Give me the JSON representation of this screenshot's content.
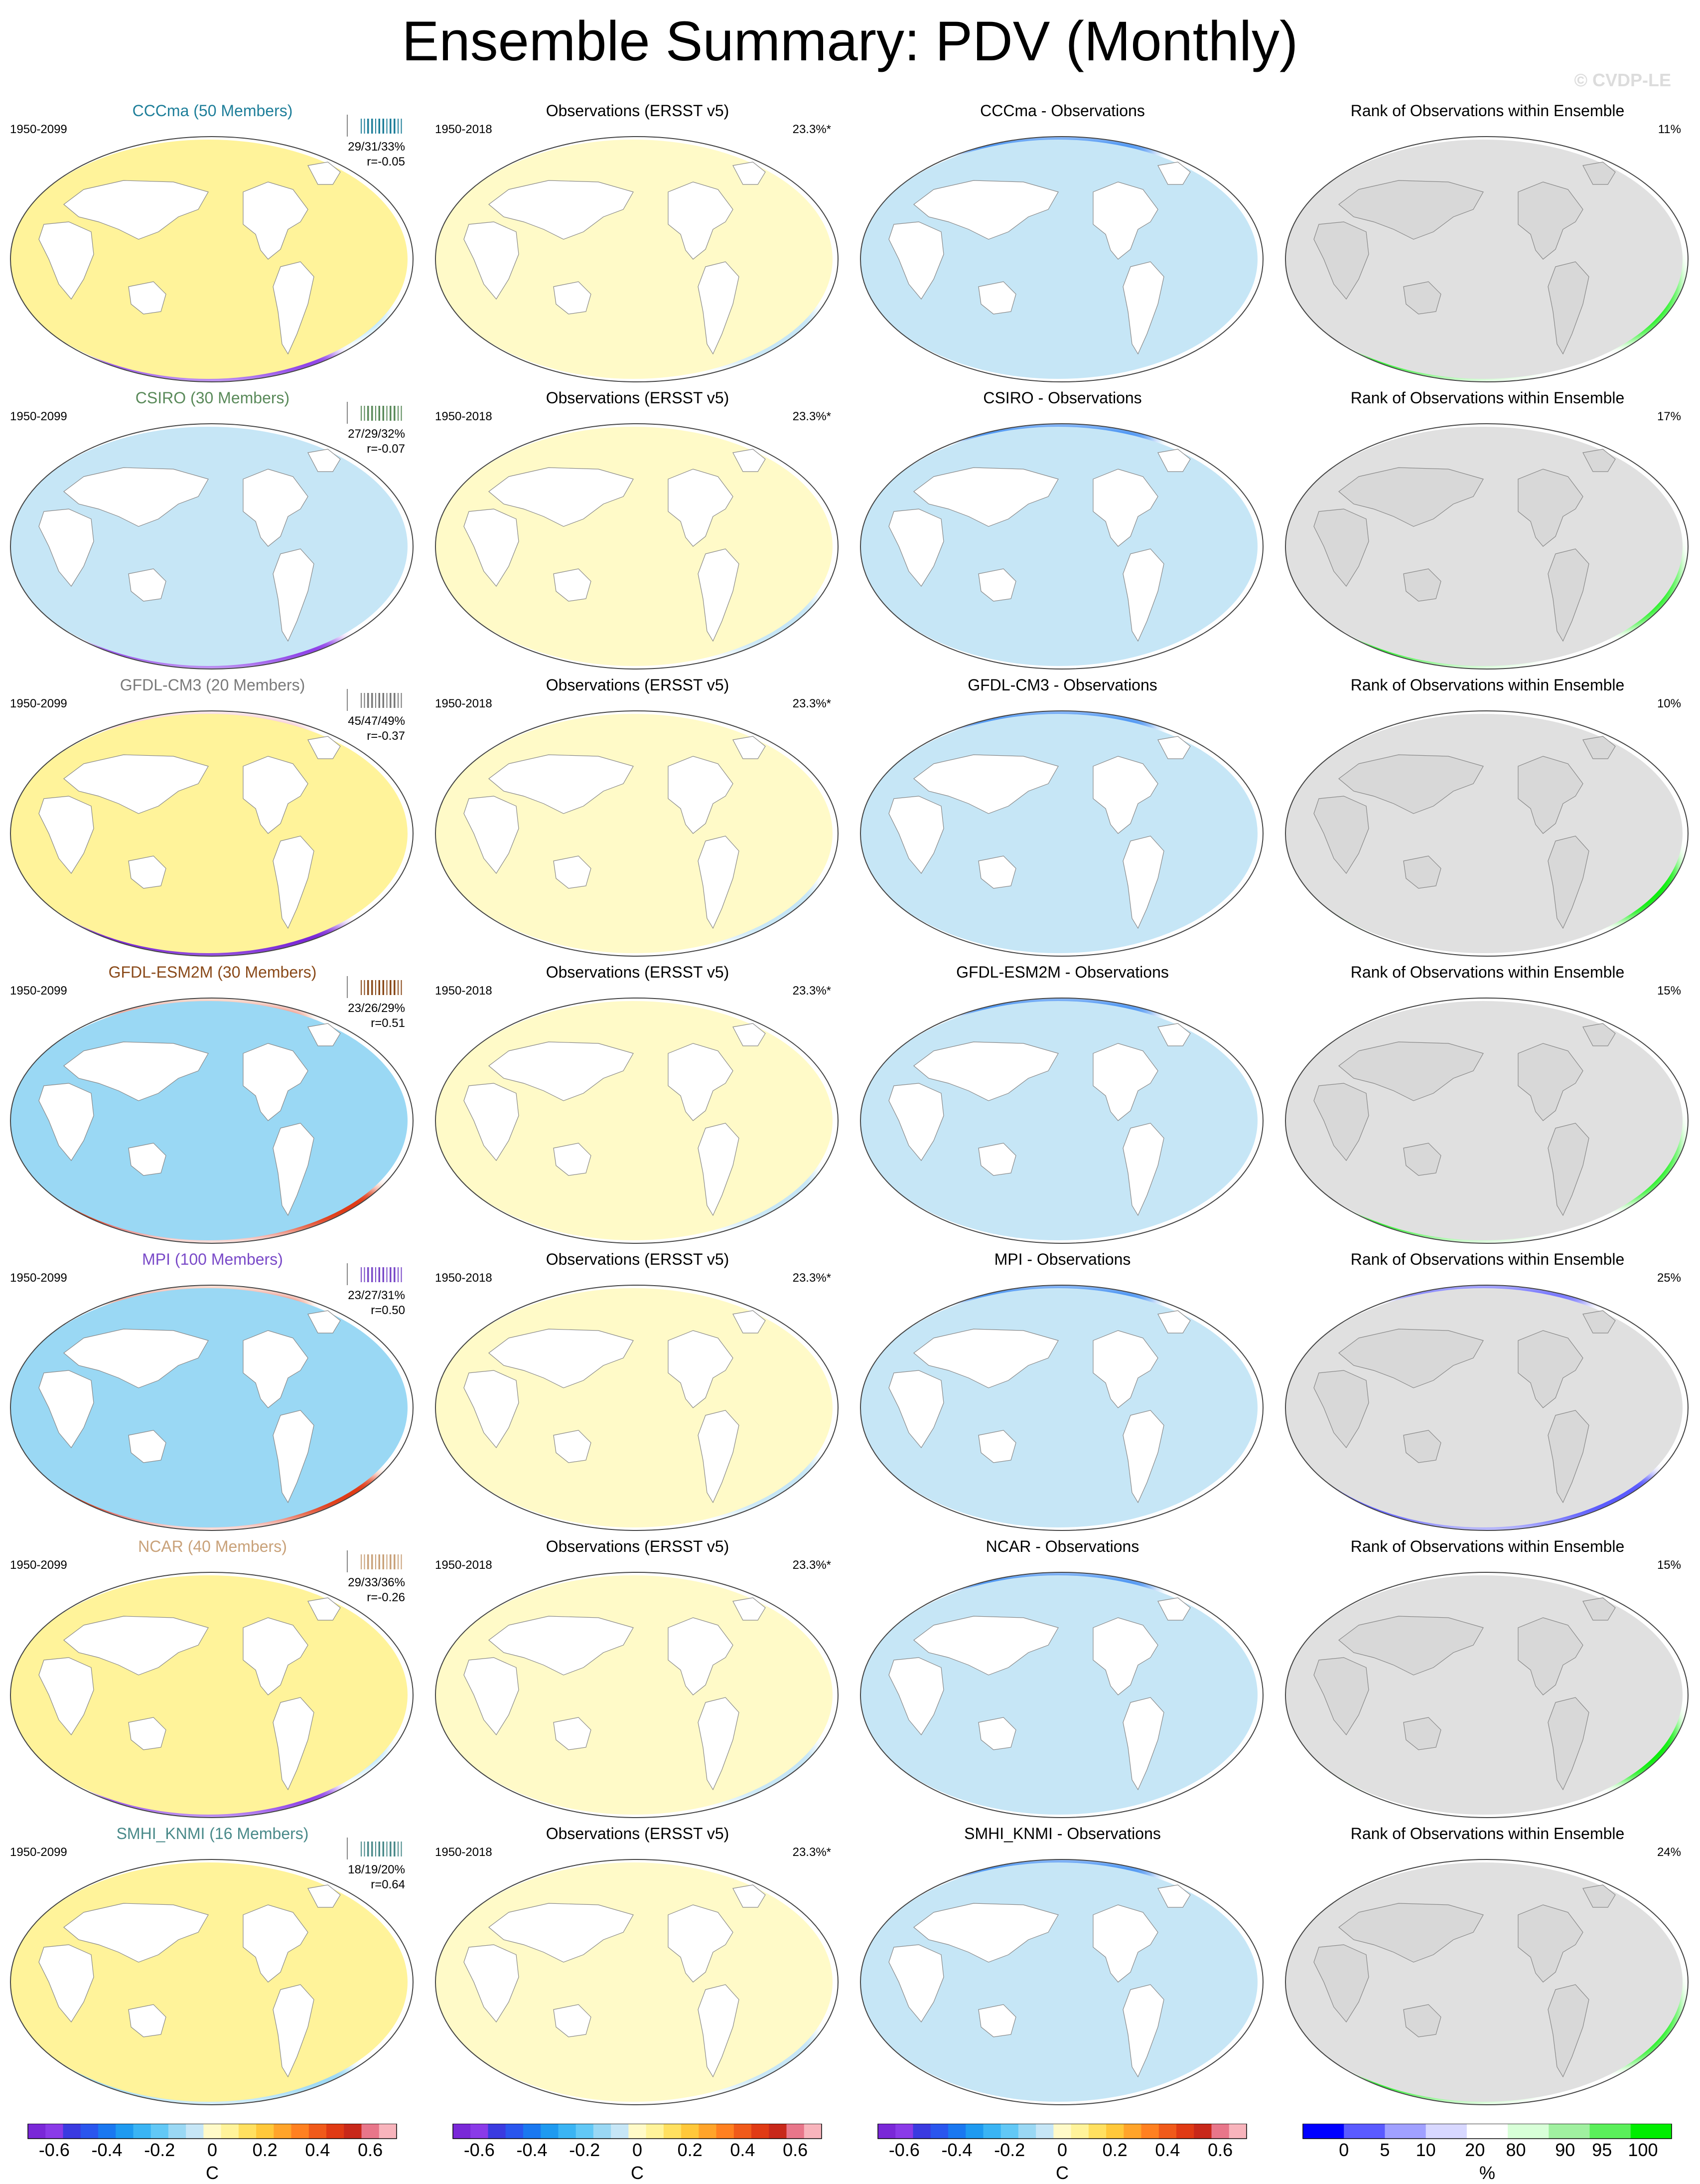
{
  "title": "Ensemble Summary: PDV (Monthly)",
  "copyright": "© CVDP-LE",
  "observations_panel": {
    "title": "Observations (ERSST v5)",
    "period": "1950-2018",
    "variance": "23.3%*"
  },
  "rank_panel_title": "Rank of Observations within Ensemble",
  "rows": [
    {
      "model_title": "CCCma (50 Members)",
      "model_color": "#1f7f9a",
      "period": "1950-2099",
      "pct_line": "29/31/33%",
      "r_line": "r=-0.05",
      "diff_title": "CCCma - Observations",
      "rank_pct": "11%",
      "tick_color": "#1f7f9a",
      "model_regime": "dipole",
      "rank_style": "blue_green"
    },
    {
      "model_title": "CSIRO (30 Members)",
      "model_color": "#5a8a5a",
      "period": "1950-2099",
      "pct_line": "27/29/32%",
      "r_line": "r=-0.07",
      "diff_title": "CSIRO - Observations",
      "rank_pct": "17%",
      "tick_color": "#5a8a5a",
      "model_regime": "warm_west",
      "rank_style": "blue_green"
    },
    {
      "model_title": "GFDL-CM3 (20 Members)",
      "model_color": "#7a7a7a",
      "period": "1950-2099",
      "pct_line": "45/47/49%",
      "r_line": "r=-0.37",
      "diff_title": "GFDL-CM3 - Observations",
      "rank_pct": "10%",
      "tick_color": "#7a7a7a",
      "model_regime": "warm_north",
      "rank_style": "lav_green"
    },
    {
      "model_title": "GFDL-ESM2M (30 Members)",
      "model_color": "#8a4a1a",
      "period": "1950-2099",
      "pct_line": "23/26/29%",
      "r_line": "r=0.51",
      "diff_title": "GFDL-ESM2M - Observations",
      "rank_pct": "15%",
      "tick_color": "#8a4a1a",
      "model_regime": "warm_south",
      "rank_style": "blue_green"
    },
    {
      "model_title": "MPI (100 Members)",
      "model_color": "#7a4ac8",
      "period": "1950-2099",
      "pct_line": "23/27/31%",
      "r_line": "r=0.50",
      "diff_title": "MPI - Observations",
      "rank_pct": "25%",
      "tick_color": "#7a4ac8",
      "model_regime": "warm_south",
      "rank_style": "mixed"
    },
    {
      "model_title": "NCAR (40 Members)",
      "model_color": "#c9a27a",
      "period": "1950-2099",
      "pct_line": "29/33/36%",
      "r_line": "r=-0.26",
      "diff_title": "NCAR - Observations",
      "rank_pct": "15%",
      "tick_color": "#c9a27a",
      "model_regime": "dipole",
      "rank_style": "lav_green"
    },
    {
      "model_title": "SMHI_KNMI (16 Members)",
      "model_color": "#4a8a8a",
      "period": "1950-2099",
      "pct_line": "18/19/20%",
      "r_line": "r=0.64",
      "diff_title": "SMHI_KNMI - Observations",
      "rank_pct": "24%",
      "tick_color": "#4a8a8a",
      "model_regime": "mild",
      "rank_style": "blue_green"
    }
  ],
  "colorbar_temp": {
    "unit": "C",
    "labels": [
      "-0.6",
      "-0.4",
      "-0.2",
      "0",
      "0.2",
      "0.4",
      "0.6"
    ],
    "colors": [
      "#7a28d8",
      "#8a3ae8",
      "#3a3ae0",
      "#2a56ee",
      "#1a78f0",
      "#1e9af0",
      "#3ab4f4",
      "#62c8f6",
      "#9ad8f4",
      "#c6e6f6",
      "#fffac8",
      "#fff39a",
      "#ffe060",
      "#ffc83a",
      "#ffa42a",
      "#ff8020",
      "#f05a1a",
      "#e03a14",
      "#c8281a",
      "#e8768a",
      "#f8b4bc"
    ]
  },
  "colorbar_rank": {
    "unit": "%",
    "labels": [
      "0",
      "5",
      "10",
      "20",
      "80",
      "90",
      "95",
      "100"
    ],
    "colors": [
      "#0000ff",
      "#5a5aff",
      "#a0a0ff",
      "#d8d8ff",
      "#ffffff",
      "#d8ffd8",
      "#a0f0a0",
      "#5aef5a",
      "#00ee00"
    ]
  }
}
